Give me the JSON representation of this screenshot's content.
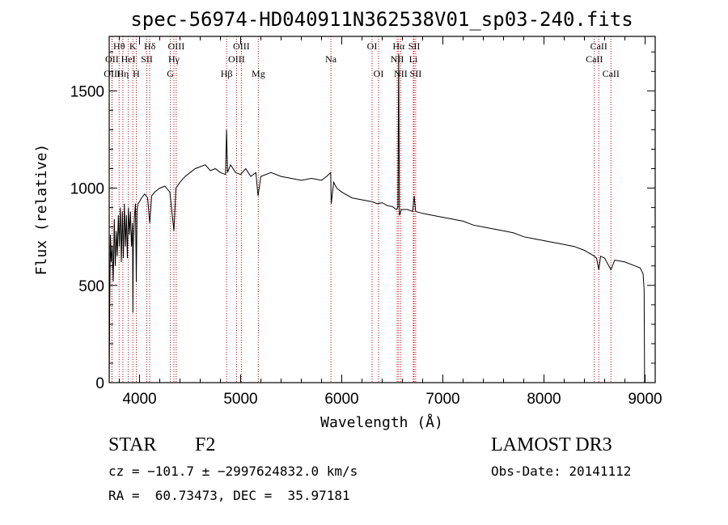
{
  "title": "spec-56974-HD040911N362538V01_sp03-240.fits",
  "info": {
    "class": "STAR",
    "subclass": "F2",
    "survey": "LAMOST DR3",
    "cz": "cz = −101.7 ± −2997624832.0 km/s",
    "obs_date": "Obs-Date: 20141112",
    "radec": "RA =  60.73473, DEC =  35.97181"
  },
  "chart_data": {
    "type": "line",
    "title": "spec-56974-HD040911N362538V01_sp03-240.fits",
    "xlabel": "Wavelength (Å)",
    "ylabel": "Flux (relative)",
    "xlim": [
      3700,
      9100
    ],
    "ylim": [
      0,
      1780
    ],
    "xticks": [
      4000,
      5000,
      6000,
      7000,
      8000,
      9000
    ],
    "yticks": [
      0,
      500,
      1000,
      1500
    ],
    "grid": false,
    "series": [
      {
        "x": [
          3700,
          3705,
          3712,
          3720,
          3730,
          3740,
          3750,
          3760,
          3770,
          3780,
          3790,
          3800,
          3810,
          3820,
          3830,
          3840,
          3850,
          3860,
          3870,
          3880,
          3890,
          3900,
          3910,
          3920,
          3930,
          3934,
          3938,
          3950,
          3960,
          3968,
          3975,
          3985,
          4000,
          4020,
          4050,
          4080,
          4101,
          4120,
          4150,
          4200,
          4250,
          4300,
          4340,
          4360,
          4400,
          4450,
          4500,
          4550,
          4600,
          4650,
          4700,
          4750,
          4800,
          4850,
          4861,
          4870,
          4900,
          4950,
          5000,
          5050,
          5100,
          5150,
          5172,
          5200,
          5300,
          5400,
          5500,
          5600,
          5700,
          5800,
          5850,
          5890,
          5896,
          5920,
          5950,
          6000,
          6100,
          6200,
          6300,
          6350,
          6400,
          6450,
          6500,
          6540,
          6555,
          6563,
          6570,
          6590,
          6650,
          6700,
          6717,
          6730,
          6800,
          6900,
          7000,
          7100,
          7200,
          7300,
          7400,
          7500,
          7600,
          7700,
          7800,
          7900,
          8000,
          8100,
          8200,
          8300,
          8400,
          8498,
          8520,
          8542,
          8560,
          8600,
          8662,
          8700,
          8800,
          8900,
          8950,
          8980,
          8990,
          8995
        ],
        "y": [
          0,
          380,
          760,
          620,
          700,
          520,
          840,
          600,
          780,
          650,
          860,
          700,
          900,
          620,
          880,
          640,
          920,
          700,
          860,
          640,
          900,
          760,
          880,
          700,
          820,
          360,
          700,
          860,
          920,
          520,
          880,
          920,
          930,
          950,
          970,
          950,
          820,
          960,
          980,
          1000,
          1010,
          980,
          780,
          1000,
          1030,
          1060,
          1080,
          1100,
          1110,
          1120,
          1090,
          1100,
          1080,
          1070,
          1300,
          1080,
          1120,
          1080,
          1070,
          1100,
          1060,
          1080,
          960,
          1060,
          1080,
          1060,
          1050,
          1040,
          1050,
          1040,
          1060,
          1080,
          920,
          1030,
          1000,
          980,
          950,
          940,
          930,
          920,
          925,
          910,
          905,
          890,
          900,
          1690,
          860,
          890,
          890,
          880,
          960,
          880,
          870,
          860,
          850,
          840,
          830,
          810,
          800,
          790,
          780,
          770,
          750,
          740,
          730,
          720,
          710,
          700,
          680,
          650,
          640,
          580,
          650,
          640,
          580,
          630,
          620,
          600,
          590,
          560,
          480,
          0
        ]
      }
    ],
    "lines": [
      {
        "name": "OII",
        "x": 3727,
        "row": 1
      },
      {
        "name": "Hθ",
        "x": 3798,
        "row": 0
      },
      {
        "name": "OIII",
        "x": 3729,
        "row": 2
      },
      {
        "name": "Hη",
        "x": 3835,
        "row": 2
      },
      {
        "name": "HeI",
        "x": 3889,
        "row": 1
      },
      {
        "name": "K",
        "x": 3934,
        "row": 0
      },
      {
        "name": "H",
        "x": 3968,
        "row": 2
      },
      {
        "name": "SII",
        "x": 4072,
        "row": 1
      },
      {
        "name": "Hδ",
        "x": 4101,
        "row": 0
      },
      {
        "name": "OIII",
        "x": 4363,
        "row": 0
      },
      {
        "name": "Hγ",
        "x": 4340,
        "row": 1
      },
      {
        "name": "G",
        "x": 4305,
        "row": 2
      },
      {
        "name": "Hβ",
        "x": 4861,
        "row": 2
      },
      {
        "name": "OIII",
        "x": 4959,
        "row": 1
      },
      {
        "name": "OIII",
        "x": 5007,
        "row": 0
      },
      {
        "name": "Mg",
        "x": 5175,
        "row": 2
      },
      {
        "name": "Na",
        "x": 5893,
        "row": 1
      },
      {
        "name": "OI",
        "x": 6300,
        "row": 0
      },
      {
        "name": "OI",
        "x": 6364,
        "row": 2
      },
      {
        "name": "Hα",
        "x": 6563,
        "row": 0
      },
      {
        "name": "NII",
        "x": 6548,
        "row": 1
      },
      {
        "name": "NII",
        "x": 6583,
        "row": 2
      },
      {
        "name": "SII",
        "x": 6716,
        "row": 0
      },
      {
        "name": "Li",
        "x": 6708,
        "row": 1
      },
      {
        "name": "SII",
        "x": 6731,
        "row": 2
      },
      {
        "name": "CaII",
        "x": 8498,
        "row": 1
      },
      {
        "name": "CaII",
        "x": 8542,
        "row": 0
      },
      {
        "name": "CaII",
        "x": 8662,
        "row": 2
      }
    ],
    "colors": {
      "spectrum": "#000000",
      "line_markers": "#cc0000",
      "axes": "#000000"
    }
  }
}
